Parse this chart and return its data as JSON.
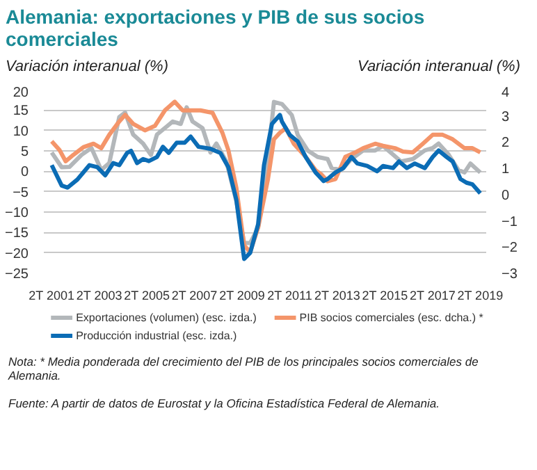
{
  "chart_data": {
    "type": "line",
    "title": "Alemania: exportaciones y PIB de sus socios comerciales",
    "ylabel": "Variación interanual (%)",
    "y2label": "Variación interanual (%)",
    "xlim": [
      "2000-12",
      "2019-07"
    ],
    "xticks": [
      {
        "value": "2001-04",
        "label": "2T 2001"
      },
      {
        "value": "2003-04",
        "label": "2T 2003"
      },
      {
        "value": "2005-04",
        "label": "2T 2005"
      },
      {
        "value": "2007-04",
        "label": "2T 2007"
      },
      {
        "value": "2009-04",
        "label": "2T 2009"
      },
      {
        "value": "2011-04",
        "label": "2T 2011"
      },
      {
        "value": "2013-04",
        "label": "2T 2013"
      },
      {
        "value": "2015-04",
        "label": "2T 2015"
      },
      {
        "value": "2017-04",
        "label": "2T 2017"
      },
      {
        "value": "2019-04",
        "label": "2T 2019"
      }
    ],
    "ylim": [
      -25,
      20
    ],
    "yticks": [
      -25,
      -20,
      -15,
      -10,
      -5,
      0,
      5,
      10,
      15,
      20
    ],
    "y2lim": [
      -3,
      4
    ],
    "y2ticks": [
      -3,
      -2,
      -1,
      0,
      1,
      2,
      3,
      4
    ],
    "grid": "y",
    "legend": "bottom",
    "series": [
      {
        "name": "Exportaciones (volumen) (esc. izda.)",
        "color": "#b3b7ba",
        "x": [
          "2001-04",
          "2001-09",
          "2002-01",
          "2002-07",
          "2002-12",
          "2003-05",
          "2003-09",
          "2004-02",
          "2004-05",
          "2004-09",
          "2005-02",
          "2005-06",
          "2005-09",
          "2006-02",
          "2006-05",
          "2006-09",
          "2006-12",
          "2007-03",
          "2007-08",
          "2007-12",
          "2008-03",
          "2008-08",
          "2009-01",
          "2009-05",
          "2009-08",
          "2009-12",
          "2010-05",
          "2010-08",
          "2010-12",
          "2011-03",
          "2011-05",
          "2011-08",
          "2012-01",
          "2012-06",
          "2012-11",
          "2013-01",
          "2013-06",
          "2013-11",
          "2014-05",
          "2014-11",
          "2015-03",
          "2015-08",
          "2015-12",
          "2016-06",
          "2016-12",
          "2017-04",
          "2017-07",
          "2017-12",
          "2018-05",
          "2018-08",
          "2018-11",
          "2019-04"
        ],
        "values": [
          4.6,
          1,
          1.1,
          4,
          5.7,
          0.3,
          2,
          13.3,
          14.4,
          9,
          6.8,
          4,
          9,
          11,
          12.2,
          11.6,
          15.7,
          12.2,
          10.6,
          4.6,
          6.8,
          2.4,
          -7.3,
          -17.6,
          -17.6,
          -13.8,
          3.5,
          17,
          16.5,
          14.9,
          13.8,
          8.9,
          5.1,
          3.5,
          3,
          0.8,
          0.3,
          3,
          5.1,
          5.1,
          6.2,
          4.1,
          2.4,
          3,
          5.1,
          5.7,
          6.8,
          4.1,
          0.3,
          -0.3,
          1.9,
          -0.3
        ]
      },
      {
        "name": "PIB socios comerciales (esc. dcha.) *",
        "color": "#f4956a",
        "axis": "y2",
        "x": [
          "2001-04",
          "2001-08",
          "2001-11",
          "2002-03",
          "2002-08",
          "2003-01",
          "2003-05",
          "2003-09",
          "2004-02",
          "2004-05",
          "2004-09",
          "2005-03",
          "2005-08",
          "2006-01",
          "2006-06",
          "2006-10",
          "2007-02",
          "2007-07",
          "2008-01",
          "2008-06",
          "2008-09",
          "2009-01",
          "2009-05",
          "2009-08",
          "2009-12",
          "2010-05",
          "2010-08",
          "2010-11",
          "2011-02",
          "2011-06",
          "2011-12",
          "2012-05",
          "2012-08",
          "2012-11",
          "2013-03",
          "2013-08",
          "2014-01",
          "2014-05",
          "2014-11",
          "2015-03",
          "2015-09",
          "2016-01",
          "2016-06",
          "2016-11",
          "2017-04",
          "2017-09",
          "2018-02",
          "2018-08",
          "2018-12",
          "2019-04"
        ],
        "values": [
          2.03,
          1.69,
          1.27,
          1.52,
          1.81,
          1.94,
          1.77,
          2.28,
          2.79,
          3.04,
          2.7,
          2.45,
          2.62,
          3.21,
          3.54,
          3.21,
          3.21,
          3.21,
          3.12,
          2.36,
          1.69,
          0.26,
          -1.94,
          -2.19,
          -1.26,
          0.59,
          2.11,
          2.36,
          2.53,
          1.94,
          1.44,
          0.93,
          0.76,
          0.51,
          0.59,
          1.44,
          1.61,
          1.77,
          1.94,
          1.86,
          1.77,
          1.64,
          1.61,
          1.94,
          2.28,
          2.28,
          2.11,
          1.77,
          1.77,
          1.61
        ]
      },
      {
        "name": "Producción industrial  (esc. izda.)",
        "color": "#0b6cb5",
        "x": [
          "2001-04",
          "2001-09",
          "2001-12",
          "2002-05",
          "2002-11",
          "2003-03",
          "2003-07",
          "2003-11",
          "2004-02",
          "2004-06",
          "2004-08",
          "2004-11",
          "2005-02",
          "2005-05",
          "2005-09",
          "2005-12",
          "2006-03",
          "2006-07",
          "2006-11",
          "2007-02",
          "2007-06",
          "2007-12",
          "2008-05",
          "2008-09",
          "2009-01",
          "2009-05",
          "2009-08",
          "2009-12",
          "2010-03",
          "2010-07",
          "2010-11",
          "2010-12",
          "2011-04",
          "2011-08",
          "2011-12",
          "2012-05",
          "2012-09",
          "2012-11",
          "2013-03",
          "2013-07",
          "2013-11",
          "2014-02",
          "2014-07",
          "2014-12",
          "2015-03",
          "2015-08",
          "2015-11",
          "2016-03",
          "2016-07",
          "2016-12",
          "2017-04",
          "2017-07",
          "2017-11",
          "2018-02",
          "2018-06",
          "2018-09",
          "2018-12",
          "2019-04"
        ],
        "values": [
          1.5,
          -3.5,
          -4,
          -2,
          1.5,
          1,
          -1,
          2,
          1.5,
          4.5,
          5,
          2,
          3,
          2.5,
          3.5,
          6,
          4.5,
          7,
          7,
          8.5,
          6,
          5.5,
          4.5,
          1,
          -7,
          -21.5,
          -20,
          -13,
          1.5,
          11.6,
          13.8,
          12.2,
          8.9,
          7.3,
          3.5,
          -0.3,
          -2.4,
          -1.9,
          -0.3,
          0.8,
          3.5,
          1.9,
          1.3,
          0,
          1.3,
          0.8,
          2.4,
          0.8,
          1.9,
          0.8,
          3.5,
          5.1,
          3.5,
          2.4,
          -1.9,
          -2.8,
          -3.2,
          -5.4
        ]
      }
    ],
    "annotations": [
      "Nota: * Media ponderada del crecimiento del PIB de los principales socios comerciales de Alemania.",
      "Fuente: A partir de datos de Eurostat y la Oficina Estadística Federal de Alemania."
    ]
  }
}
